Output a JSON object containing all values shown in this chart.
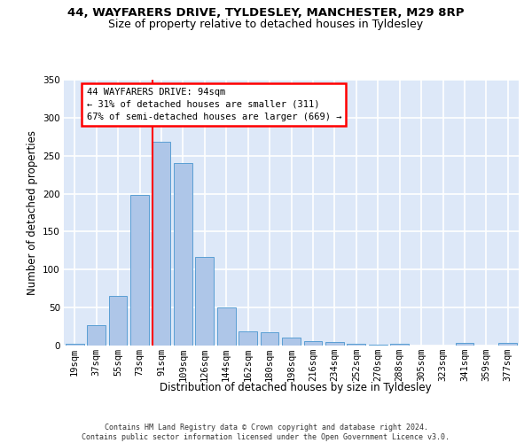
{
  "title1": "44, WAYFARERS DRIVE, TYLDESLEY, MANCHESTER, M29 8RP",
  "title2": "Size of property relative to detached houses in Tyldesley",
  "xlabel": "Distribution of detached houses by size in Tyldesley",
  "ylabel": "Number of detached properties",
  "bins": [
    "19sqm",
    "37sqm",
    "55sqm",
    "73sqm",
    "91sqm",
    "109sqm",
    "126sqm",
    "144sqm",
    "162sqm",
    "180sqm",
    "198sqm",
    "216sqm",
    "234sqm",
    "252sqm",
    "270sqm",
    "288sqm",
    "305sqm",
    "323sqm",
    "341sqm",
    "359sqm",
    "377sqm"
  ],
  "bar_heights": [
    2,
    27,
    65,
    198,
    268,
    240,
    117,
    50,
    19,
    18,
    10,
    6,
    5,
    2,
    1,
    2,
    0,
    0,
    4,
    0,
    4
  ],
  "bar_color": "#aec6e8",
  "bar_edge_color": "#5a9fd4",
  "vline_bin_index": 4,
  "vline_color": "red",
  "annotation_text": "44 WAYFARERS DRIVE: 94sqm\n← 31% of detached houses are smaller (311)\n67% of semi-detached houses are larger (669) →",
  "annotation_box_color": "white",
  "annotation_box_edge": "red",
  "ylim": [
    0,
    350
  ],
  "yticks": [
    0,
    50,
    100,
    150,
    200,
    250,
    300,
    350
  ],
  "footer": "Contains HM Land Registry data © Crown copyright and database right 2024.\nContains public sector information licensed under the Open Government Licence v3.0.",
  "bg_color": "#dde8f8",
  "grid_color": "#ffffff",
  "title_fontsize": 9.5,
  "subtitle_fontsize": 9.0,
  "ylabel_fontsize": 8.5,
  "xlabel_fontsize": 8.5,
  "tick_fontsize": 7.5,
  "ann_fontsize": 7.5,
  "footer_fontsize": 6.0
}
